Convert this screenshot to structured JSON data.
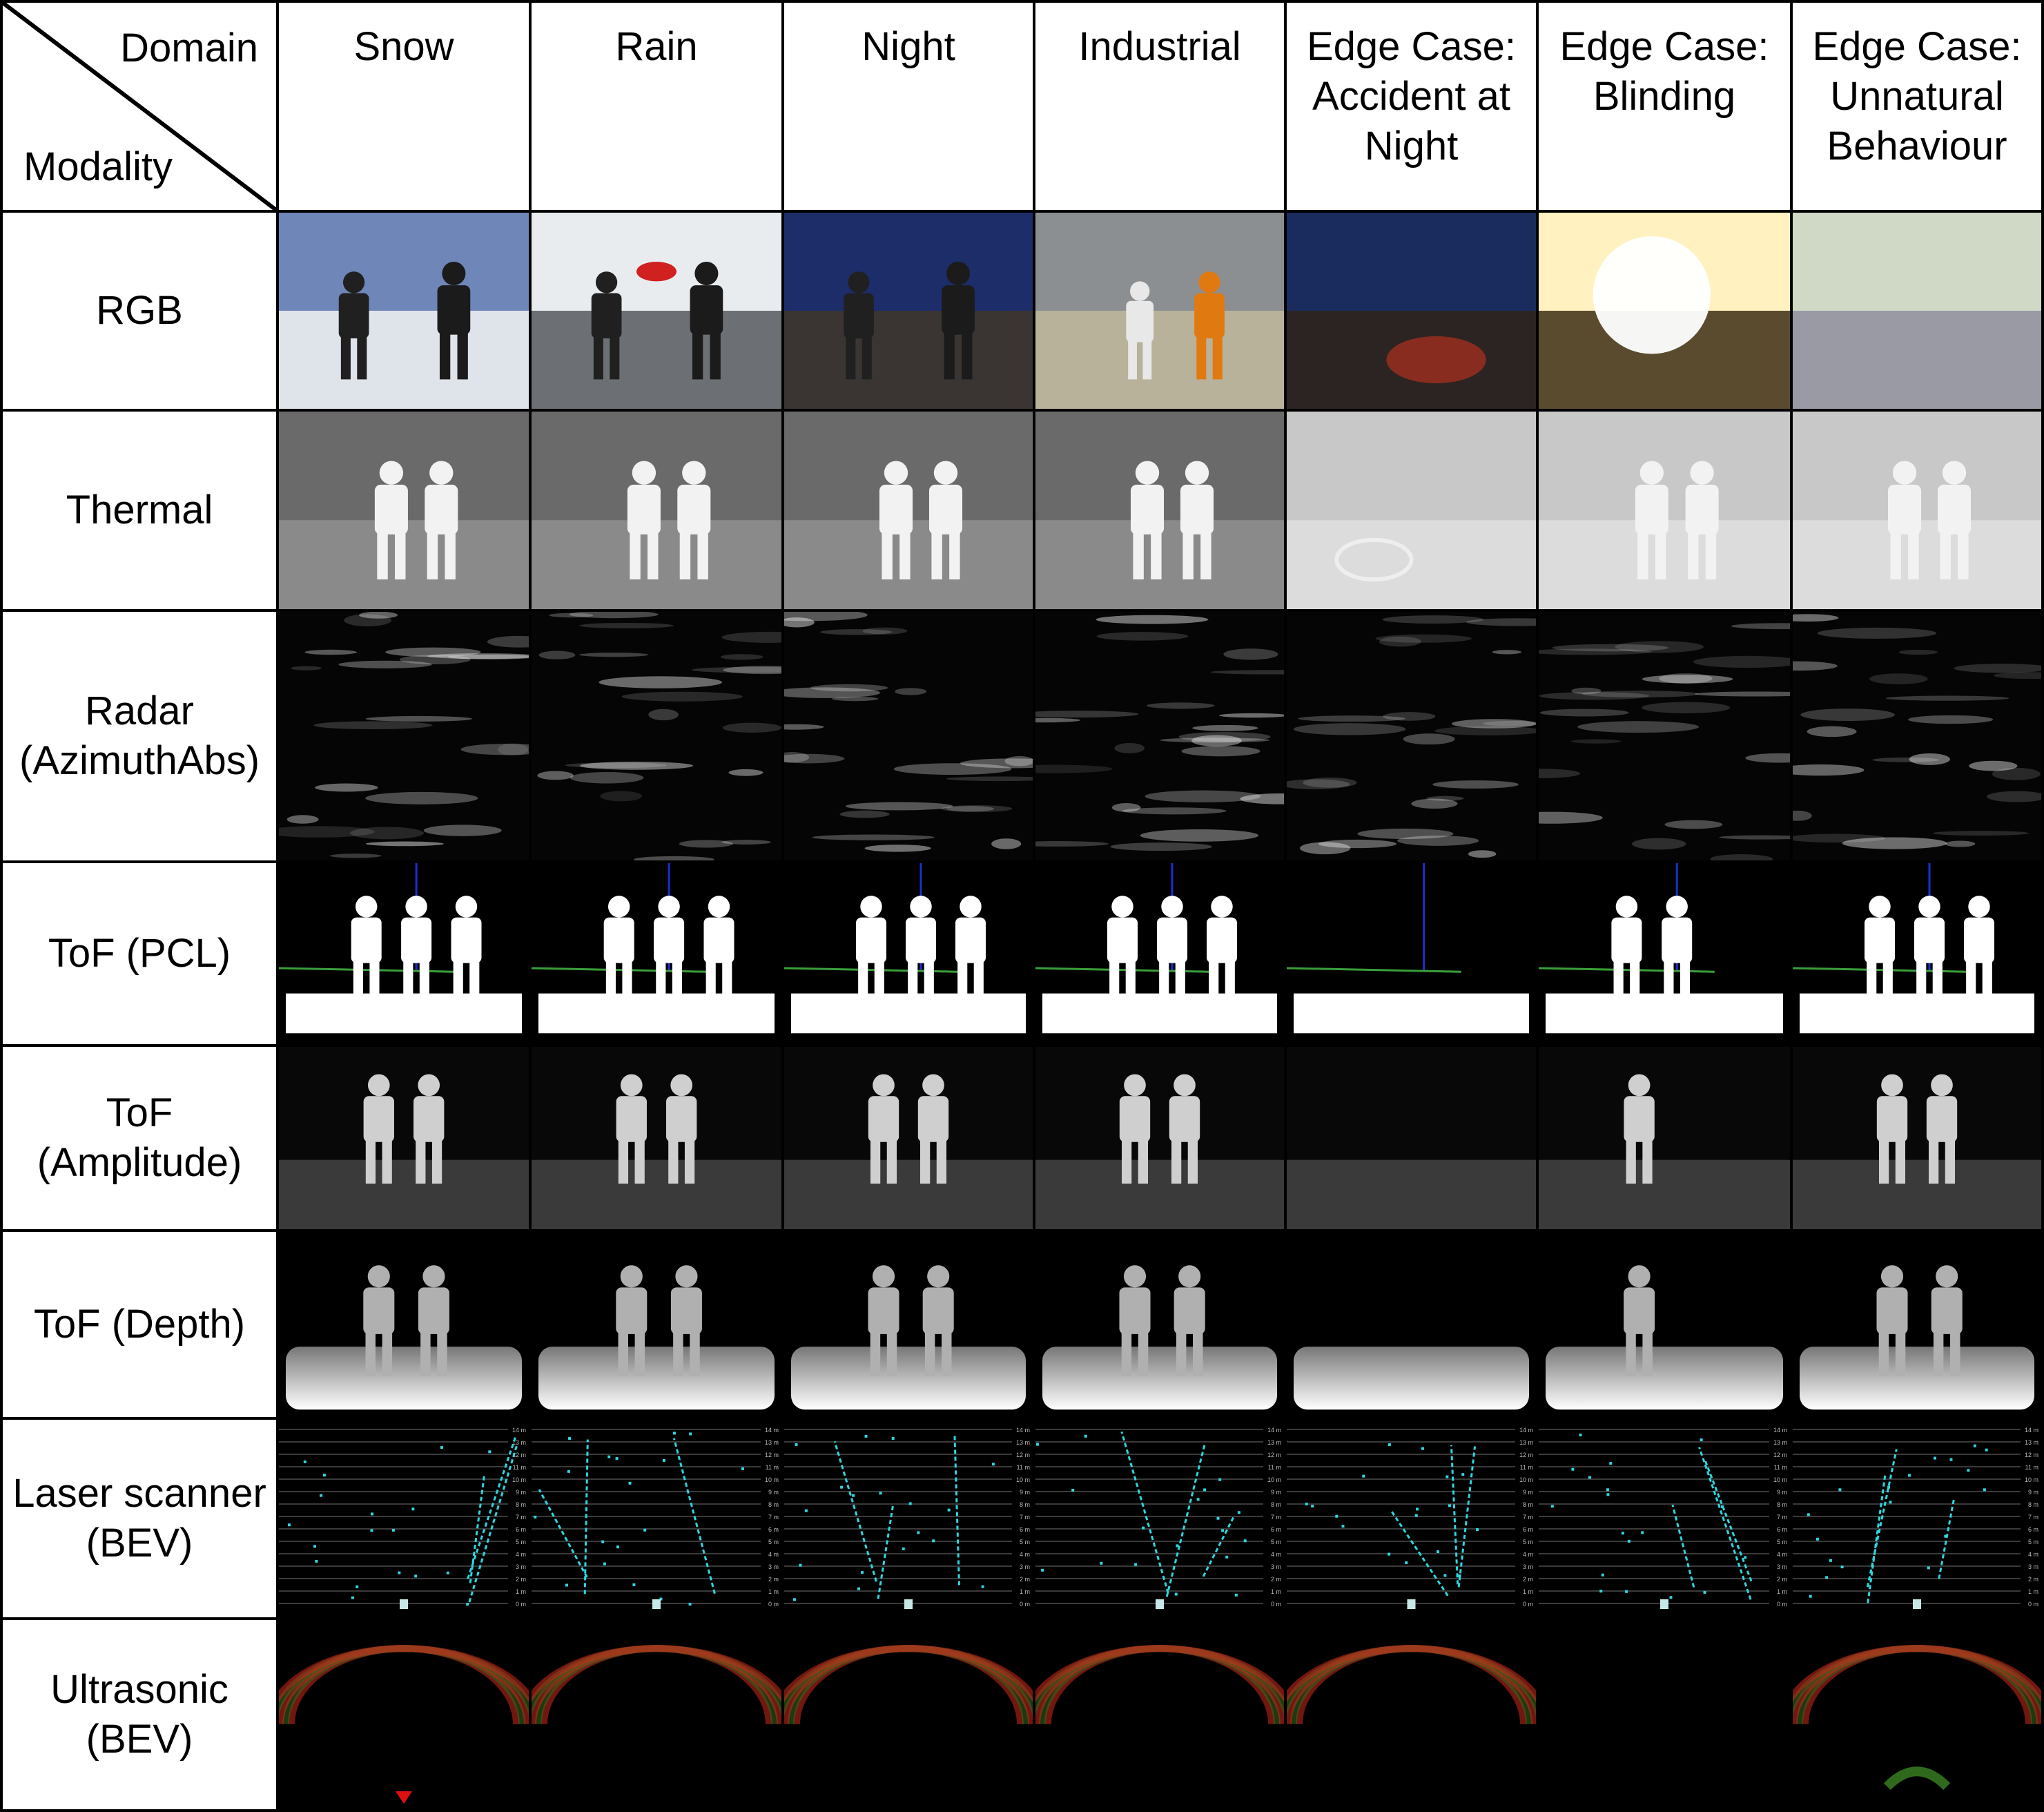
{
  "corner": {
    "domain_label": "Domain",
    "modality_label": "Modality"
  },
  "columns": [
    {
      "lines": [
        "Snow"
      ]
    },
    {
      "lines": [
        "Rain"
      ]
    },
    {
      "lines": [
        "Night"
      ]
    },
    {
      "lines": [
        "Industrial"
      ]
    },
    {
      "lines": [
        "Edge Case:",
        "Accident at",
        "Night"
      ]
    },
    {
      "lines": [
        "Edge Case:",
        "Blinding"
      ]
    },
    {
      "lines": [
        "Edge Case:",
        "Unnatural",
        "Behaviour"
      ]
    }
  ],
  "rows": [
    {
      "lines": [
        "RGB"
      ],
      "kind": "rgb"
    },
    {
      "lines": [
        "Thermal"
      ],
      "kind": "thermal"
    },
    {
      "lines": [
        "Radar",
        "(AzimuthAbs)"
      ],
      "kind": "radar"
    },
    {
      "lines": [
        "ToF (PCL)"
      ],
      "kind": "pcl"
    },
    {
      "lines": [
        "ToF",
        "(Amplitude)"
      ],
      "kind": "amp"
    },
    {
      "lines": [
        "ToF (Depth)"
      ],
      "kind": "depth"
    },
    {
      "lines": [
        "Laser scanner",
        "(BEV)"
      ],
      "kind": "laser"
    },
    {
      "lines": [
        "Ultrasonic",
        "(BEV)"
      ],
      "kind": "ultra"
    }
  ],
  "laser_ticks": [
    "14 m",
    "13 m",
    "12 m",
    "11 m",
    "10 m",
    "9 m",
    "8 m",
    "7 m",
    "6 m",
    "5 m",
    "4 m",
    "3 m",
    "2 m",
    "1 m",
    "0 m"
  ],
  "colors": {
    "laser_point": "#2fd6e0",
    "ultrasonic_red": "#d0281e",
    "ultrasonic_green": "#2f6a1c",
    "pcl_blue": "#1a2fd0",
    "pcl_green": "#3aa03a"
  }
}
